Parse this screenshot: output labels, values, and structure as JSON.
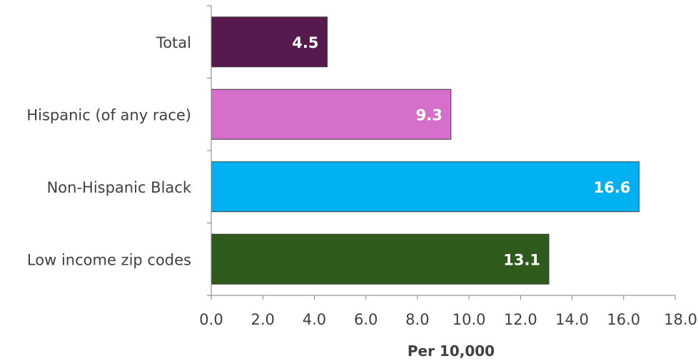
{
  "chart_data": {
    "type": "bar",
    "orientation": "horizontal",
    "categories": [
      "Total",
      "Hispanic (of any race)",
      "Non-Hispanic Black",
      "Low income zip codes"
    ],
    "values": [
      4.5,
      9.3,
      16.6,
      13.1
    ],
    "value_labels": [
      "4.5",
      "9.3",
      "16.6",
      "13.1"
    ],
    "colors": [
      "#561a4f",
      "#d66ecb",
      "#00b0f0",
      "#2e5a1c"
    ],
    "xlabel": "Per 10,000",
    "xlim": [
      0,
      18
    ],
    "x_ticks": [
      "0.0",
      "2.0",
      "4.0",
      "6.0",
      "8.0",
      "10.0",
      "12.0",
      "14.0",
      "16.0",
      "18.0"
    ],
    "grid": false
  }
}
